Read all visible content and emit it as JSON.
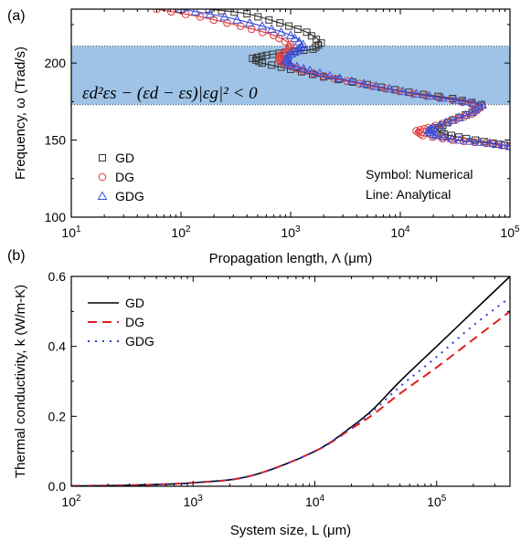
{
  "chart_data": [
    {
      "type": "line",
      "panel_label": "(a)",
      "xlabel": "Propagation length, Λ (μm)",
      "ylabel": "Frequency, ω (Trad/s)",
      "x_scale": "log",
      "xlim": [
        10,
        100000
      ],
      "ylim": [
        100,
        235
      ],
      "x_ticks": [
        10,
        100,
        1000,
        10000,
        100000
      ],
      "x_tick_labels": [
        {
          "base": "10",
          "exp": "1"
        },
        {
          "base": "10",
          "exp": "2"
        },
        {
          "base": "10",
          "exp": "3"
        },
        {
          "base": "10",
          "exp": "4"
        },
        {
          "base": "10",
          "exp": "5"
        }
      ],
      "y_ticks": [
        100,
        150,
        200
      ],
      "y_tick_labels": [
        "100",
        "150",
        "200"
      ],
      "band": {
        "y_range": [
          173,
          211
        ],
        "color": "#9ec3e6"
      },
      "equation": "εd²εs − (εd − εs)|εg|² < 0",
      "annotations": [
        "Symbol: Numerical",
        "Line: Analytical"
      ],
      "legend_placement": "lower-left",
      "series": [
        {
          "name": "GD",
          "color": "#333333",
          "marker": "square",
          "points": [
            [
              180,
              235
            ],
            [
              400,
              232
            ],
            [
              800,
              226
            ],
            [
              1400,
              220
            ],
            [
              1900,
              213
            ],
            [
              1600,
              209
            ],
            [
              900,
              207
            ],
            [
              600,
              205
            ],
            [
              450,
              203
            ],
            [
              550,
              200
            ],
            [
              1000,
              196
            ],
            [
              2000,
              191
            ],
            [
              5000,
              186
            ],
            [
              12000,
              181
            ],
            [
              30000,
              177
            ],
            [
              55000,
              173
            ],
            [
              45000,
              168
            ],
            [
              30000,
              163
            ],
            [
              22000,
              158
            ],
            [
              25000,
              154
            ],
            [
              40000,
              151
            ],
            [
              70000,
              148
            ],
            [
              100000,
              146
            ]
          ]
        },
        {
          "name": "DG",
          "color": "#e03a3a",
          "marker": "circle",
          "points": [
            [
              60,
              235
            ],
            [
              150,
              230
            ],
            [
              350,
              224
            ],
            [
              700,
              218
            ],
            [
              1000,
              212
            ],
            [
              950,
              208
            ],
            [
              800,
              205
            ],
            [
              780,
              202
            ],
            [
              900,
              199
            ],
            [
              1300,
              195
            ],
            [
              2500,
              190
            ],
            [
              5500,
              185
            ],
            [
              13000,
              180
            ],
            [
              30000,
              176
            ],
            [
              55000,
              172
            ],
            [
              45000,
              167
            ],
            [
              28000,
              162
            ],
            [
              18000,
              158
            ],
            [
              14000,
              156
            ],
            [
              16000,
              153
            ],
            [
              30000,
              150
            ],
            [
              60000,
              148
            ],
            [
              100000,
              146
            ]
          ]
        },
        {
          "name": "GDG",
          "color": "#3a4fd8",
          "marker": "triangle",
          "points": [
            [
              100,
              235
            ],
            [
              250,
              230
            ],
            [
              550,
              224
            ],
            [
              1000,
              218
            ],
            [
              1300,
              212
            ],
            [
              1150,
              208
            ],
            [
              950,
              205
            ],
            [
              900,
              202
            ],
            [
              1000,
              199
            ],
            [
              1500,
              195
            ],
            [
              2800,
              190
            ],
            [
              6000,
              185
            ],
            [
              14000,
              180
            ],
            [
              32000,
              176
            ],
            [
              56000,
              173
            ],
            [
              45000,
              168
            ],
            [
              30000,
              163
            ],
            [
              20000,
              158
            ],
            [
              18000,
              156
            ],
            [
              21000,
              153
            ],
            [
              35000,
              150
            ],
            [
              65000,
              148
            ],
            [
              100000,
              146
            ]
          ]
        }
      ]
    },
    {
      "type": "line",
      "panel_label": "(b)",
      "xlabel": "System size, L (μm)",
      "ylabel": "Thermal conductivity, k (W/m-K)",
      "x_scale": "log",
      "xlim": [
        100,
        400000
      ],
      "ylim": [
        0,
        0.6
      ],
      "x_ticks": [
        100,
        1000,
        10000,
        100000
      ],
      "x_tick_labels": [
        {
          "base": "10",
          "exp": "2"
        },
        {
          "base": "10",
          "exp": "3"
        },
        {
          "base": "10",
          "exp": "4"
        },
        {
          "base": "10",
          "exp": "5"
        }
      ],
      "y_ticks": [
        0,
        0.2,
        0.4,
        0.6
      ],
      "y_tick_labels": [
        "0.0",
        "0.2",
        "0.4",
        "0.6"
      ],
      "legend_placement": "top-left",
      "series": [
        {
          "name": "GD",
          "color": "#000000",
          "dash": "none",
          "points": [
            [
              100,
              0.001
            ],
            [
              300,
              0.003
            ],
            [
              1000,
              0.01
            ],
            [
              3000,
              0.03
            ],
            [
              10000,
              0.1
            ],
            [
              20000,
              0.17
            ],
            [
              30000,
              0.22
            ],
            [
              50000,
              0.3
            ],
            [
              100000,
              0.4
            ],
            [
              200000,
              0.5
            ],
            [
              400000,
              0.6
            ]
          ]
        },
        {
          "name": "DG",
          "color": "#e01e1e",
          "dash": "10,6",
          "points": [
            [
              100,
              0.001
            ],
            [
              300,
              0.003
            ],
            [
              1000,
              0.01
            ],
            [
              3000,
              0.03
            ],
            [
              10000,
              0.1
            ],
            [
              20000,
              0.165
            ],
            [
              30000,
              0.205
            ],
            [
              50000,
              0.265
            ],
            [
              100000,
              0.34
            ],
            [
              200000,
              0.42
            ],
            [
              400000,
              0.5
            ]
          ]
        },
        {
          "name": "GDG",
          "color": "#2a3fd0",
          "dash": "2,6",
          "points": [
            [
              100,
              0.001
            ],
            [
              300,
              0.003
            ],
            [
              1000,
              0.01
            ],
            [
              3000,
              0.03
            ],
            [
              10000,
              0.1
            ],
            [
              20000,
              0.168
            ],
            [
              30000,
              0.215
            ],
            [
              50000,
              0.285
            ],
            [
              100000,
              0.37
            ],
            [
              200000,
              0.46
            ],
            [
              400000,
              0.54
            ]
          ]
        }
      ]
    }
  ]
}
